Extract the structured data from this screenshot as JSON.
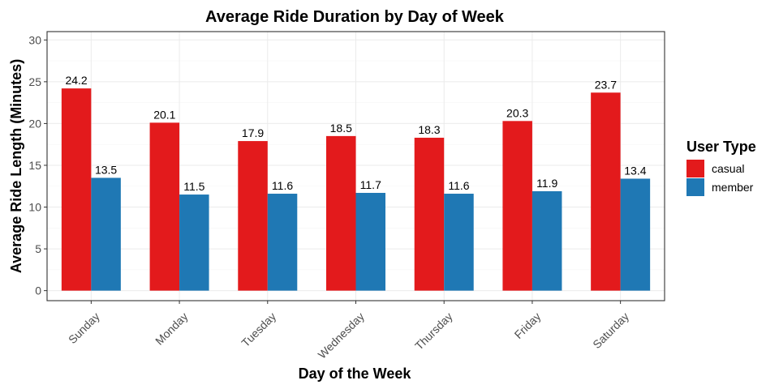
{
  "chart_data": {
    "type": "bar",
    "title": "Average Ride Duration by Day of Week",
    "xlabel": "Day of the Week",
    "ylabel": "Average Ride Length (Minutes)",
    "categories": [
      "Sunday",
      "Monday",
      "Tuesday",
      "Wednesday",
      "Thursday",
      "Friday",
      "Saturday"
    ],
    "ylim": [
      0,
      31
    ],
    "yticks": [
      0,
      5,
      10,
      15,
      20,
      25,
      30
    ],
    "grid": true,
    "legend": {
      "title": "User Type",
      "placement": "right"
    },
    "series": [
      {
        "name": "casual",
        "color": "#e31a1c",
        "values": [
          24.2,
          20.1,
          17.9,
          18.5,
          18.3,
          20.3,
          23.7
        ],
        "labels": [
          "24.2",
          "20.1",
          "17.9",
          "18.5",
          "18.3",
          "20.3",
          "23.7"
        ]
      },
      {
        "name": "member",
        "color": "#1f78b4",
        "values": [
          13.5,
          11.5,
          11.6,
          11.7,
          11.6,
          11.9,
          13.4
        ],
        "labels": [
          "13.5",
          "11.5",
          "11.6",
          "11.7",
          "11.6",
          "11.9",
          "13.4"
        ]
      }
    ]
  }
}
